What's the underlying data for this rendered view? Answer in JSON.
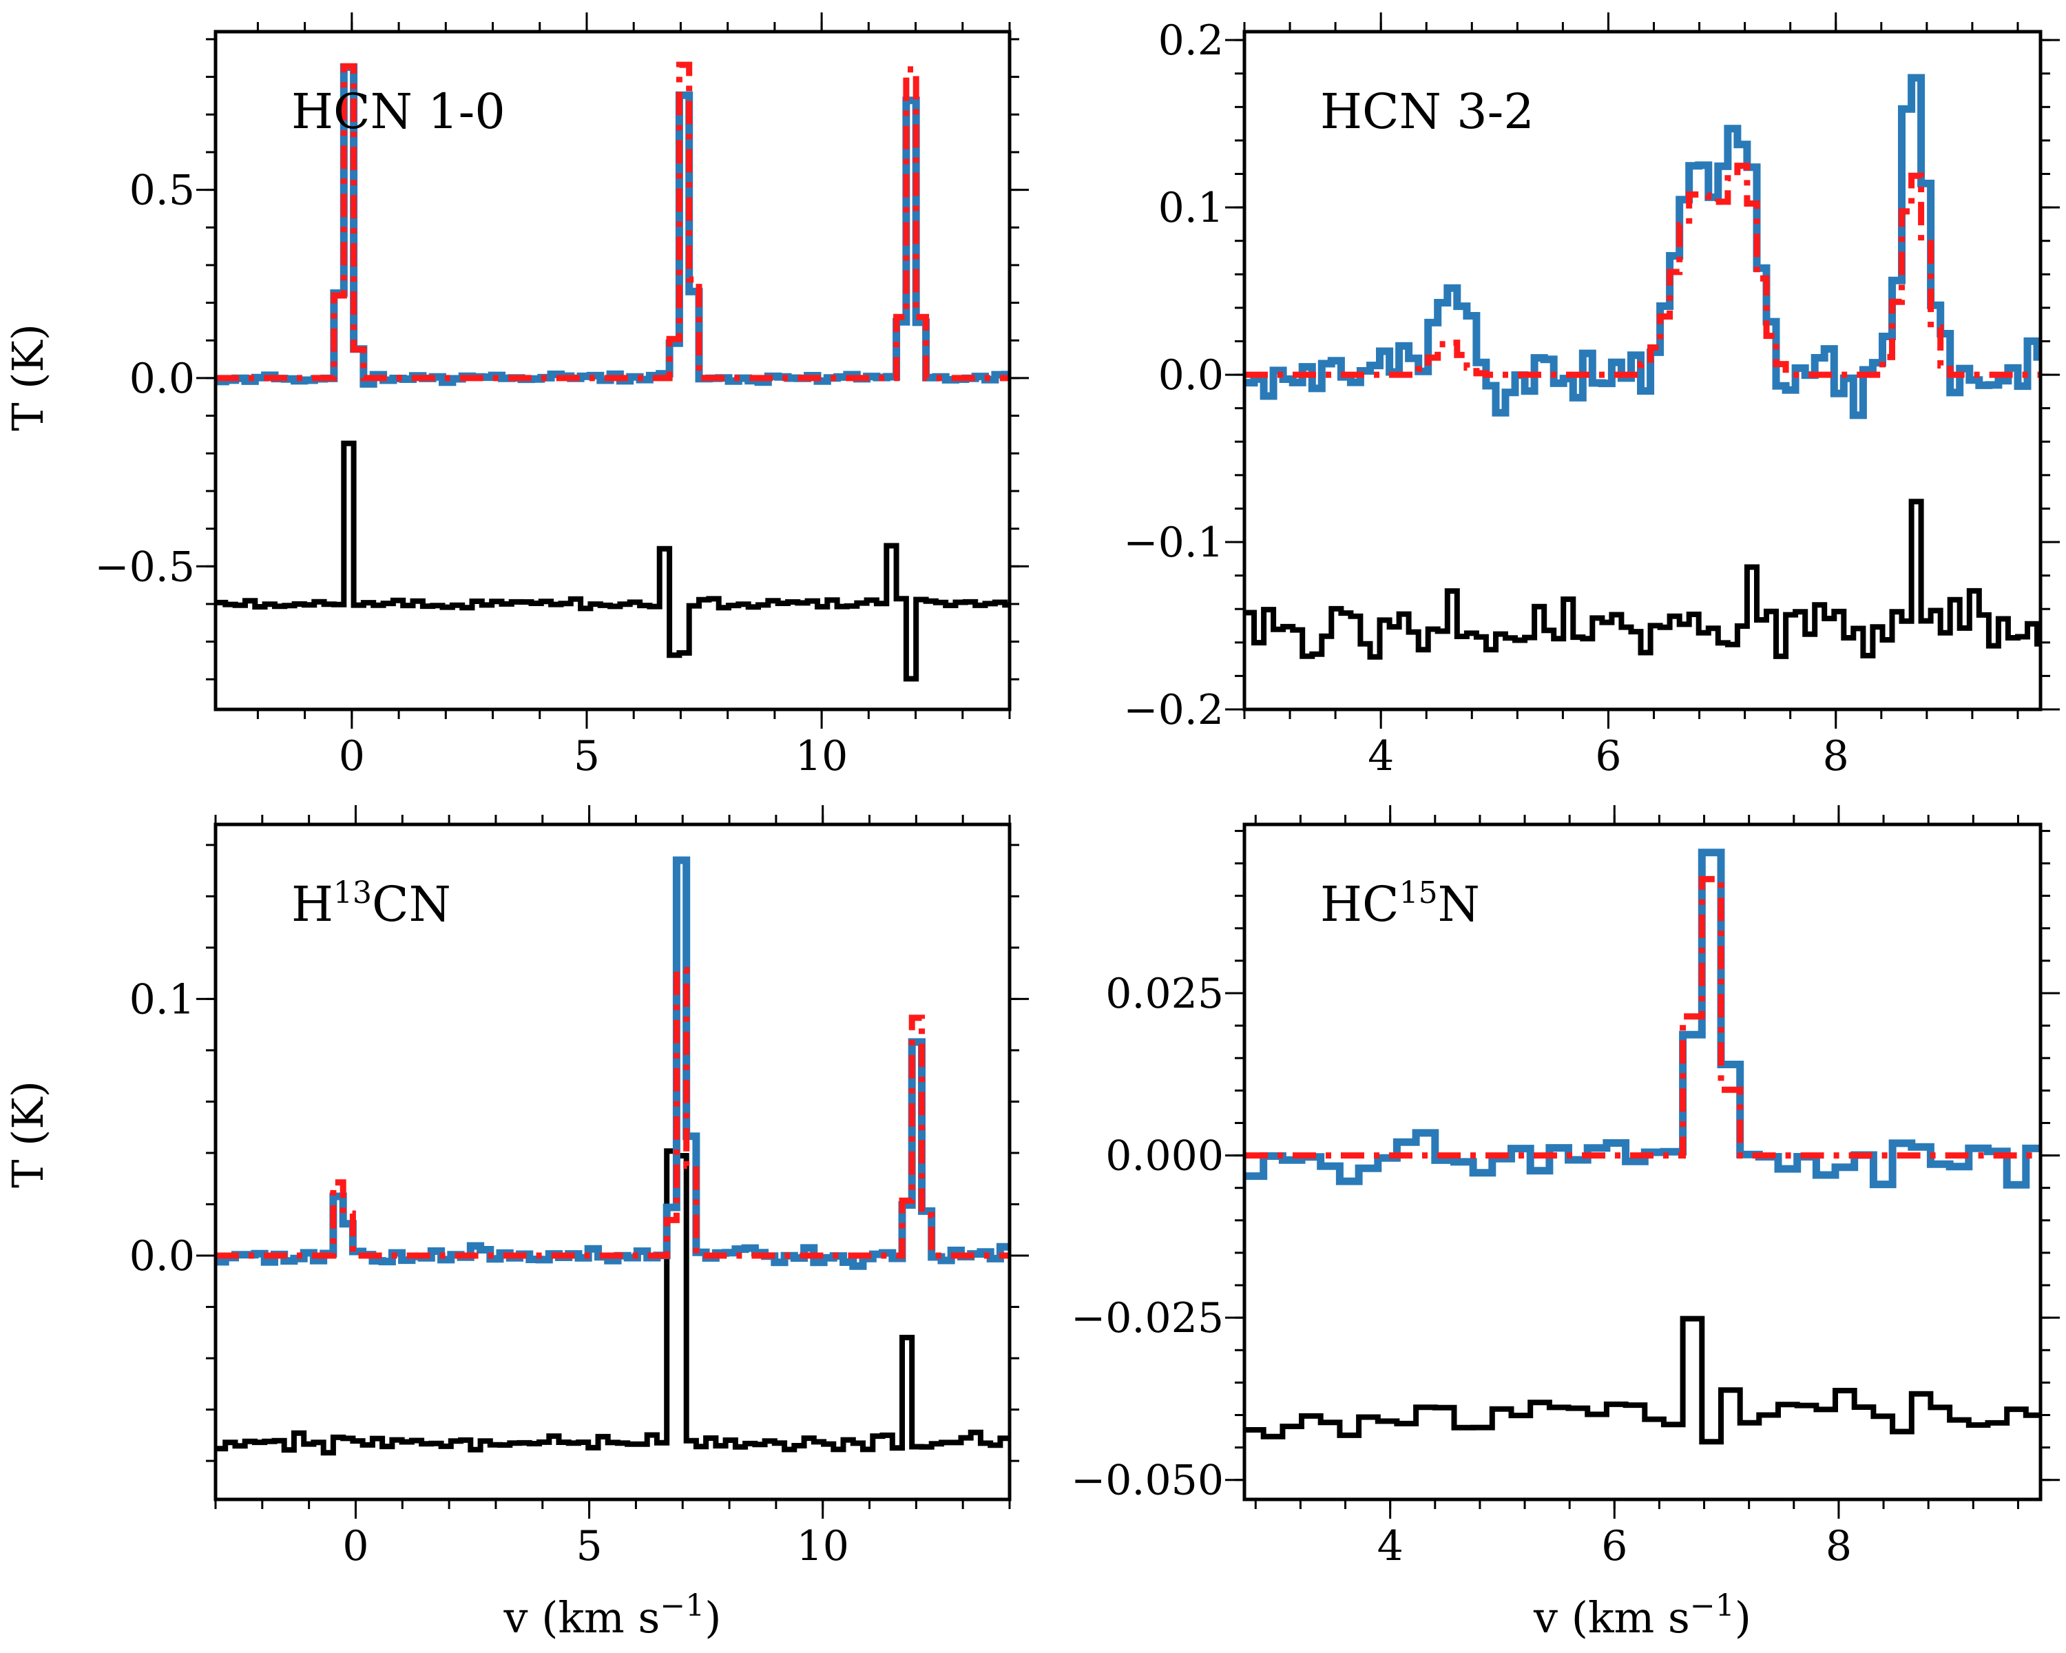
{
  "figure": {
    "x_axis_label": "v (km s",
    "x_axis_label_sup": "−1",
    "x_axis_label_end": ")",
    "y_axis_label": "T (K)",
    "colors": {
      "observed": "#2a7ab8",
      "model": "#ff1a1a",
      "residual": "#000000"
    }
  },
  "chart_data": [
    {
      "type": "line",
      "id": "hcn10",
      "title": "HCN 1-0",
      "title_base": "HCN 1-0",
      "title_sup": "",
      "title_tail": "",
      "xlim": [
        -2.9,
        14.0
      ],
      "ylim": [
        -0.88,
        0.92
      ],
      "xticks": [
        0,
        5,
        10
      ],
      "xtick_labels": [
        "0",
        "5",
        "10"
      ],
      "yticks": [
        -0.5,
        0.0,
        0.5
      ],
      "ytick_labels": [
        "−0.5",
        "0.0",
        "0.5"
      ],
      "xlabel": "",
      "ylabel": "T (K)",
      "seed": 11,
      "bin_width": 0.21,
      "obs_noise": 0.01,
      "res_offset": -0.6,
      "res_noise": 0.012,
      "peaks": [
        {
          "v": -0.2,
          "amp": 0.86,
          "w": 0.28,
          "obs_factor": 1.0
        },
        {
          "v": 7.0,
          "amp": 0.86,
          "w": 0.3,
          "obs_factor": 0.9
        },
        {
          "v": 11.8,
          "amp": 0.82,
          "w": 0.3,
          "obs_factor": 0.9
        }
      ],
      "residual_features": [
        {
          "v": -0.2,
          "amp": 0.42
        },
        {
          "v": 6.6,
          "amp": 0.14
        },
        {
          "v": 6.9,
          "amp": -0.14
        },
        {
          "v": 11.4,
          "amp": 0.16
        },
        {
          "v": 11.8,
          "amp": -0.2
        }
      ],
      "series": [
        {
          "name": "observed",
          "style": "solid"
        },
        {
          "name": "model",
          "style": "dash-dot"
        },
        {
          "name": "residual",
          "style": "solid"
        }
      ]
    },
    {
      "type": "line",
      "id": "hcn32",
      "title": "HCN 3-2",
      "title_base": "HCN 3-2",
      "title_sup": "",
      "title_tail": "",
      "xlim": [
        2.8,
        9.8
      ],
      "ylim": [
        -0.2,
        0.205
      ],
      "xticks": [
        4,
        6,
        8
      ],
      "xtick_labels": [
        "4",
        "6",
        "8"
      ],
      "yticks": [
        -0.2,
        -0.1,
        0.0,
        0.1,
        0.2
      ],
      "ytick_labels": [
        "−0.2",
        "−0.1",
        "0.0",
        "0.1",
        "0.2"
      ],
      "xlabel": "",
      "ylabel": "",
      "seed": 23,
      "bin_width": 0.085,
      "obs_noise": 0.018,
      "res_offset": -0.15,
      "res_noise": 0.018,
      "peaks": [
        {
          "v": 4.55,
          "amp": 0.02,
          "w": 0.3,
          "obs_factor": 2.5
        },
        {
          "v": 6.75,
          "amp": 0.11,
          "w": 0.5,
          "obs_factor": 1.15
        },
        {
          "v": 7.15,
          "amp": 0.11,
          "w": 0.35,
          "obs_factor": 1.2
        },
        {
          "v": 8.65,
          "amp": 0.12,
          "w": 0.28,
          "obs_factor": 1.5
        }
      ],
      "residual_features": [
        {
          "v": 4.6,
          "amp": 0.03
        },
        {
          "v": 7.2,
          "amp": 0.04
        },
        {
          "v": 8.65,
          "amp": 0.06
        }
      ],
      "series": [
        {
          "name": "observed",
          "style": "solid"
        },
        {
          "name": "model",
          "style": "dash-dot"
        },
        {
          "name": "residual",
          "style": "solid"
        }
      ]
    },
    {
      "type": "line",
      "id": "h13cn",
      "title": "H13CN",
      "title_base": "H",
      "title_sup": "13",
      "title_tail": "CN",
      "xlim": [
        -3.0,
        14.0
      ],
      "ylim": [
        -0.095,
        0.168
      ],
      "xticks": [
        0,
        5,
        10
      ],
      "xtick_labels": [
        "0",
        "5",
        "10"
      ],
      "yticks": [
        0.0,
        0.1
      ],
      "ytick_labels": [
        "0.0",
        "0.1"
      ],
      "xlabel": "v (km s−1)",
      "ylabel": "T (K)",
      "seed": 37,
      "bin_width": 0.21,
      "obs_noise": 0.003,
      "res_offset": -0.073,
      "res_noise": 0.003,
      "peaks": [
        {
          "v": -0.4,
          "amp": 0.04,
          "w": 0.25,
          "obs_factor": 0.75
        },
        {
          "v": 6.9,
          "amp": 0.115,
          "w": 0.3,
          "obs_factor": 1.35
        },
        {
          "v": 11.9,
          "amp": 0.093,
          "w": 0.3,
          "obs_factor": 0.92
        }
      ],
      "residual_features": [
        {
          "v": 6.75,
          "amp": 0.112
        },
        {
          "v": 11.7,
          "amp": 0.043
        }
      ],
      "series": [
        {
          "name": "observed",
          "style": "solid"
        },
        {
          "name": "model",
          "style": "dash-dot"
        },
        {
          "name": "residual",
          "style": "solid"
        }
      ]
    },
    {
      "type": "line",
      "id": "hc15n",
      "title": "HC15N",
      "title_base": "HC",
      "title_sup": "15",
      "title_tail": "N",
      "xlim": [
        2.7,
        9.8
      ],
      "ylim": [
        -0.053,
        0.051
      ],
      "xticks": [
        4,
        6,
        8
      ],
      "xtick_labels": [
        "4",
        "6",
        "8"
      ],
      "yticks": [
        -0.05,
        -0.025,
        0.0,
        0.025
      ],
      "ytick_labels": [
        "−0.050",
        "−0.025",
        "0.000",
        "0.025"
      ],
      "xlabel": "v (km s−1)",
      "ylabel": "",
      "seed": 53,
      "bin_width": 0.17,
      "obs_noise": 0.004,
      "res_offset": -0.04,
      "res_noise": 0.004,
      "peaks": [
        {
          "v": 6.75,
          "amp": 0.044,
          "w": 0.3,
          "obs_factor": 1.0
        }
      ],
      "residual_features": [
        {
          "v": 6.6,
          "amp": 0.013
        }
      ],
      "series": [
        {
          "name": "observed",
          "style": "solid"
        },
        {
          "name": "model",
          "style": "dash-dot"
        },
        {
          "name": "residual",
          "style": "solid"
        }
      ]
    }
  ]
}
